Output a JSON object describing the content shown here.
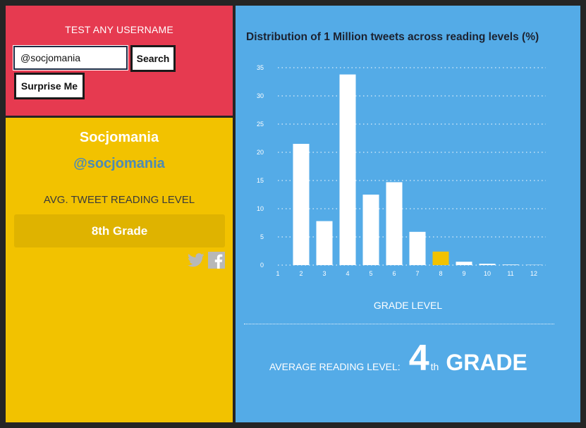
{
  "search": {
    "heading": "TEST ANY USERNAME",
    "input_value": "@socjomania",
    "search_label": "Search",
    "surprise_label": "Surprise Me"
  },
  "profile": {
    "name": "Socjomania",
    "handle": "@socjomania",
    "avg_label": "AVG. TWEET READING LEVEL",
    "grade": "8th Grade",
    "share_icons": [
      "twitter-icon",
      "facebook-icon"
    ]
  },
  "colors": {
    "search_panel": "#e63a50",
    "profile_panel": "#f2c200",
    "chart_panel": "#54abe7",
    "bar": "#ffffff",
    "highlight_bar": "#f2c200"
  },
  "chart_data": {
    "type": "bar",
    "title": "Distribution of 1 Million tweets across reading levels (%)",
    "xlabel": "GRADE LEVEL",
    "ylabel": "",
    "categories": [
      "1",
      "2",
      "3",
      "4",
      "5",
      "6",
      "7",
      "8",
      "9",
      "10",
      "11",
      "12"
    ],
    "values": [
      0,
      21.5,
      7.8,
      33.8,
      12.5,
      14.7,
      5.9,
      2.4,
      0.6,
      0.25,
      0.1,
      0.05
    ],
    "highlight_category": "8",
    "ylim": [
      0,
      35
    ],
    "yticks": [
      0,
      5,
      10,
      15,
      20,
      25,
      30,
      35
    ],
    "grid": true
  },
  "summary": {
    "caption": "AVERAGE READING LEVEL:",
    "number": "4",
    "suffix": "th",
    "grade_word": "GRADE"
  }
}
